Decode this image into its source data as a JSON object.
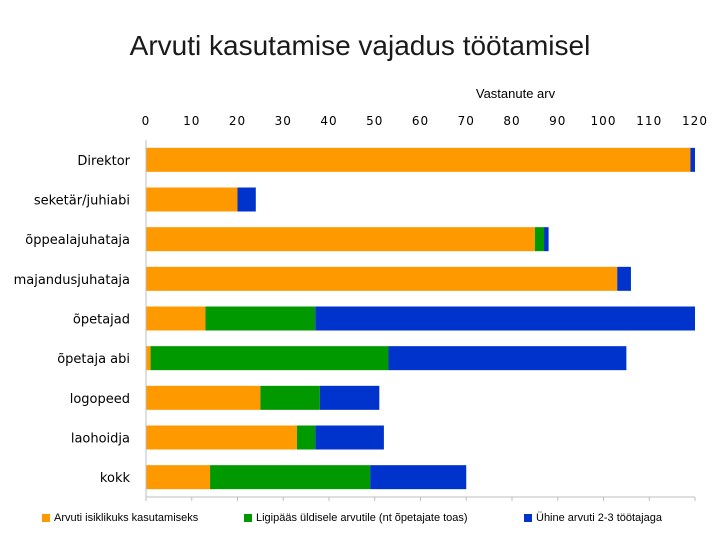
{
  "chart_data": {
    "type": "bar",
    "orientation": "horizontal",
    "stacked": true,
    "title": "Arvuti kasutamise vajadus töötamisel",
    "xlabel": "Vastanute arv",
    "xlim": [
      0,
      120
    ],
    "xticks": [
      0,
      10,
      20,
      30,
      40,
      50,
      60,
      70,
      80,
      90,
      100,
      110,
      120
    ],
    "grid": false,
    "legend_position": "bottom",
    "categories": [
      "Direktor",
      "seketär/juhiabi",
      "õppealajuhataja",
      "majandusjuhataja",
      "õpetajad",
      "õpetaja abi",
      "logopeed",
      "laohoidja",
      "kokk"
    ],
    "series": [
      {
        "name": "Arvuti isiklikuks kasutamiseks",
        "color": "#ff9900",
        "values": [
          119,
          20,
          85,
          103,
          13,
          1,
          25,
          33,
          14
        ]
      },
      {
        "name": "Ligipääs üldisele arvutile (nt õpetajate toas)",
        "color": "#009900",
        "values": [
          0,
          0,
          2,
          0,
          24,
          52,
          13,
          4,
          35
        ]
      },
      {
        "name": "Ühine arvuti 2-3 töötajaga",
        "color": "#0033cc",
        "values": [
          1,
          4,
          1,
          3,
          83,
          52,
          13,
          15,
          21
        ]
      }
    ]
  }
}
